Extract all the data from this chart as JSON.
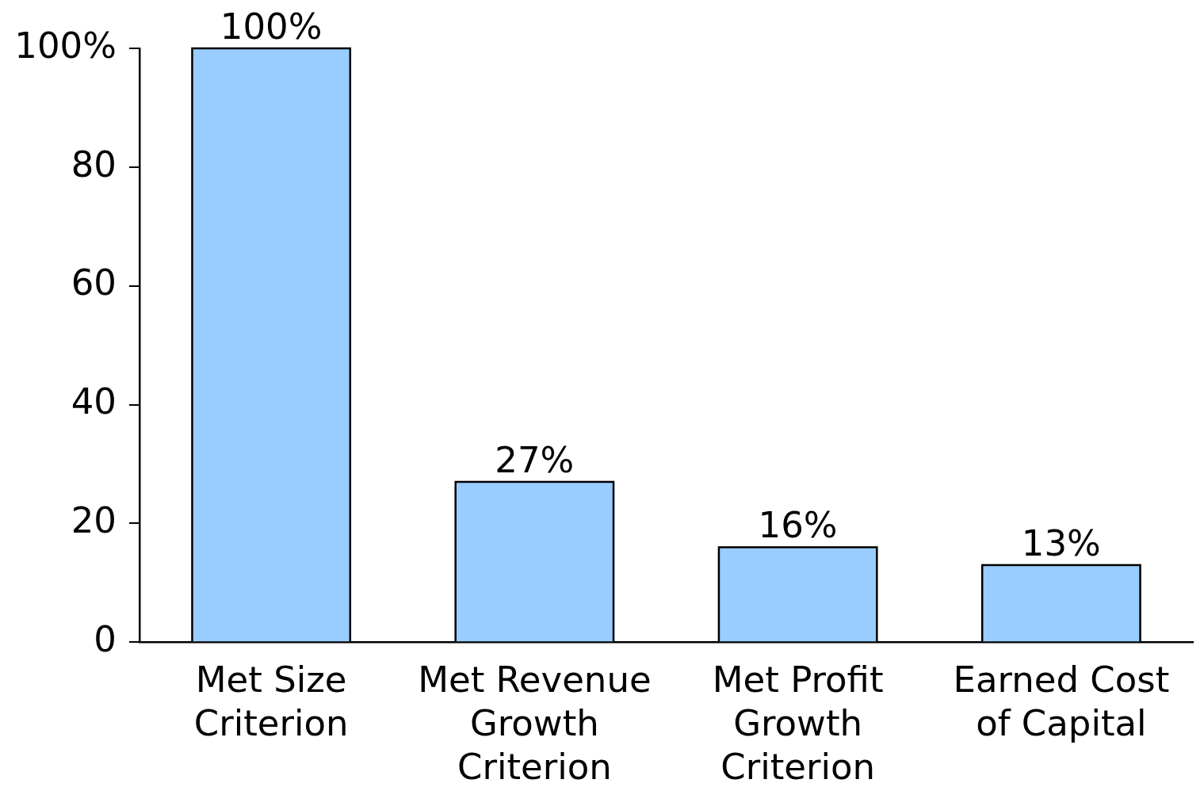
{
  "chart_data": {
    "type": "bar",
    "categories": [
      "Met Size Criterion",
      "Met Revenue Growth Criterion",
      "Met Profit Growth Criterion",
      "Earned Cost of Capital"
    ],
    "values": [
      100,
      27,
      16,
      13
    ],
    "color": "#99ccff",
    "value_labels": [
      "100%",
      "27%",
      "16%",
      "13%"
    ],
    "ylim": [
      0,
      100
    ],
    "yticks": [
      0,
      20,
      40,
      60,
      80,
      {
        "value": 100,
        "label": "100%"
      }
    ],
    "legend": false
  }
}
